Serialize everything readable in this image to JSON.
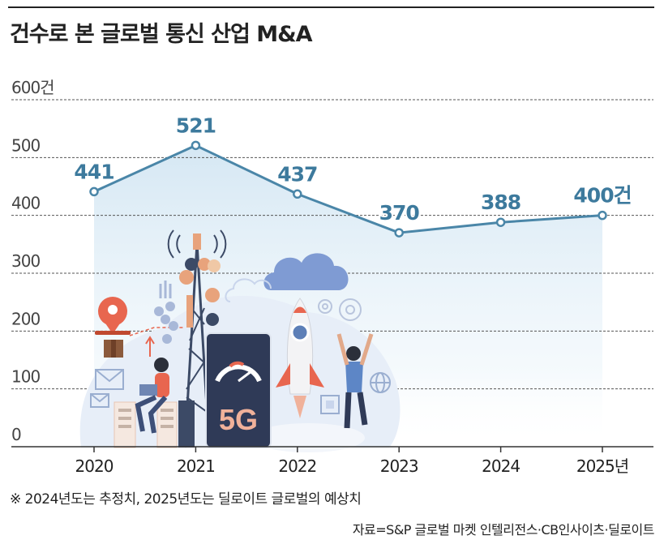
{
  "title": "건수로 본 글로벌 통신 산업 M&A",
  "note": "※ 2024년도는 추정치, 2025년도는 딜로이트 글로벌의 예상치",
  "source": "자료=S&P 글로벌 마켓 인텔리전스·CB인사이츠·딜로이트",
  "illustration": {
    "badge": "5G",
    "icons": [
      "location-pin-icon",
      "drone-icon",
      "envelope-icon",
      "server-icon",
      "cell-tower-icon",
      "cloud-icon",
      "rocket-icon",
      "gear-icon",
      "globe-icon",
      "chip-icon",
      "person-with-laptop-icon",
      "cheering-person-icon"
    ]
  },
  "chart_data": {
    "type": "line",
    "title": "건수로 본 글로벌 통신 산업 M&A",
    "x": [
      "2020",
      "2021",
      "2022",
      "2023",
      "2024",
      "2025년"
    ],
    "series": [
      {
        "values": [
          441,
          521,
          437,
          370,
          388,
          400
        ]
      }
    ],
    "data_labels": [
      "441",
      "521",
      "437",
      "370",
      "388",
      "400건"
    ],
    "y_ticks": [
      "0",
      "100",
      "200",
      "300",
      "400",
      "500",
      "600건"
    ],
    "y_tick_values": [
      0,
      100,
      200,
      300,
      400,
      500,
      600
    ],
    "ylim": [
      0,
      600
    ],
    "grid": true,
    "legend": "none",
    "colors": {
      "line": "#4a86a8",
      "label": "#3d7a9d",
      "area_top": "#d3e6f3",
      "grid": "#555555",
      "axis": "#333333"
    }
  }
}
